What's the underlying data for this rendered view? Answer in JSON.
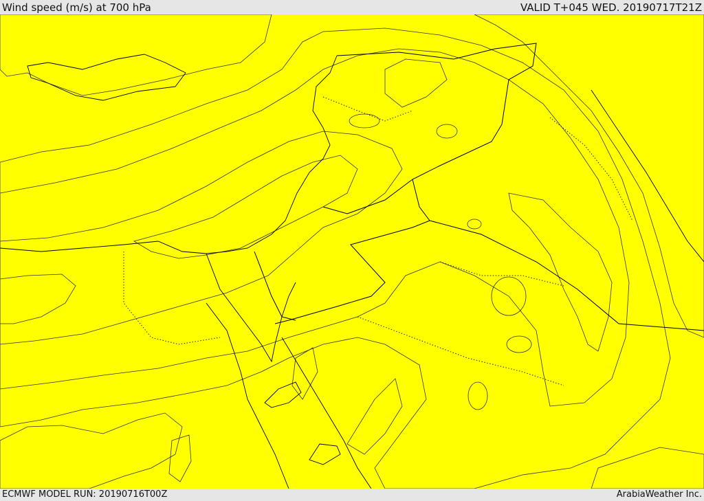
{
  "header": {
    "title": "Wind speed (m/s) at 700 hPa",
    "valid": "VALID T+045 WED. 20190717T21Z"
  },
  "footer": {
    "model_run": "ECMWF MODEL RUN: 20190716T00Z",
    "credit": "ArabiaWeather Inc."
  },
  "colors": {
    "band_light": "#fddfa6",
    "band_yellow": "#ffff00",
    "band_gold": "#ffdd00",
    "band_amber": "#ffbb00",
    "band_orange": "#ff9900",
    "band_dark": "#ff7700",
    "water_white": "#ffffff"
  }
}
